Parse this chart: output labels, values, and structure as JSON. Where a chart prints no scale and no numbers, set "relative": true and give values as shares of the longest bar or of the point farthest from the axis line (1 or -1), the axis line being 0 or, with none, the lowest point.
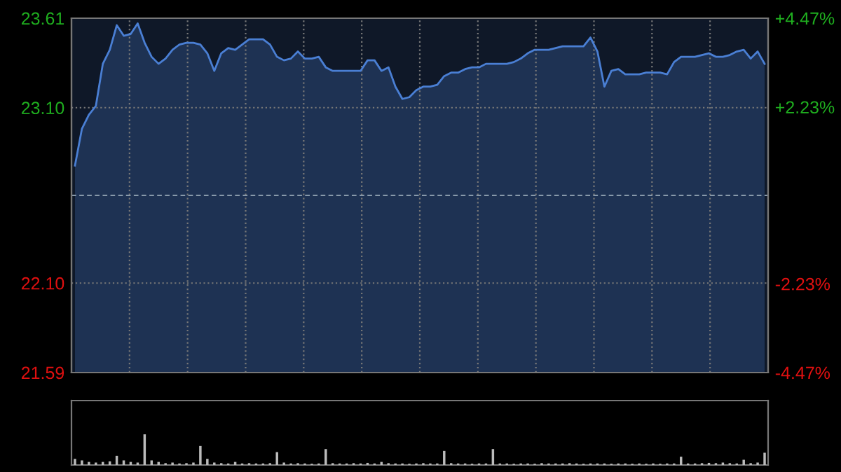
{
  "chart_data": [
    {
      "type": "area",
      "categories": [
        null,
        null,
        null,
        null,
        null,
        null,
        null,
        null,
        null,
        null,
        null,
        null,
        null,
        null,
        null,
        null,
        null,
        null,
        null,
        null,
        null,
        null,
        null,
        null,
        null,
        null,
        null,
        null,
        null,
        null,
        null,
        null,
        null,
        null,
        null,
        null,
        null,
        null,
        null,
        null,
        null,
        null,
        null,
        null,
        null,
        null,
        null,
        null,
        null,
        null,
        null,
        null,
        null,
        null,
        null,
        null,
        null,
        null,
        null,
        null,
        null,
        null,
        null,
        null,
        null,
        null,
        null,
        null,
        null,
        null,
        null,
        null,
        null,
        null,
        null,
        null,
        null,
        null,
        null,
        null,
        null,
        null,
        null,
        null,
        null,
        null,
        null,
        null,
        null,
        null,
        null,
        null,
        null,
        null,
        null,
        null,
        null,
        null,
        null,
        null
      ],
      "series": [
        {
          "color": "#4a7fd4",
          "values": [
            22.77,
            22.98,
            23.06,
            23.11,
            23.35,
            23.43,
            23.57,
            23.51,
            23.52,
            23.58,
            23.47,
            23.39,
            23.35,
            23.38,
            23.43,
            23.46,
            23.47,
            23.47,
            23.46,
            23.41,
            23.31,
            23.41,
            23.44,
            23.43,
            23.46,
            23.49,
            23.49,
            23.49,
            23.46,
            23.39,
            23.37,
            23.38,
            23.42,
            23.38,
            23.38,
            23.39,
            23.33,
            23.31,
            23.31,
            23.31,
            23.31,
            23.31,
            23.37,
            23.37,
            23.31,
            23.33,
            23.22,
            23.15,
            23.16,
            23.2,
            23.22,
            23.22,
            23.23,
            23.28,
            23.3,
            23.3,
            23.32,
            23.33,
            23.33,
            23.35,
            23.35,
            23.35,
            23.35,
            23.36,
            23.38,
            23.41,
            23.43,
            23.43,
            23.43,
            23.44,
            23.45,
            23.45,
            23.45,
            23.45,
            23.5,
            23.42,
            23.22,
            23.31,
            23.32,
            23.29,
            23.29,
            23.29,
            23.3,
            23.3,
            23.3,
            23.29,
            23.36,
            23.39,
            23.39,
            23.39,
            23.4,
            23.41,
            23.39,
            23.39,
            23.4,
            23.42,
            23.43,
            23.38,
            23.42,
            23.35
          ]
        }
      ],
      "ylim": [
        21.59,
        23.61
      ],
      "yticks": [
        23.61,
        {
          "value": 23.1,
          "label": "23.10"
        },
        {
          "value": 22.1,
          "label": "22.10"
        },
        21.59
      ],
      "y2lim": [
        -4.47,
        4.47
      ],
      "y2ticks": [
        {
          "value": 4.47,
          "label": "+4.47%"
        },
        {
          "value": 2.23,
          "label": "+2.23%"
        },
        {
          "value": -2.23,
          "label": "-2.23%"
        },
        {
          "value": -4.47,
          "label": "-4.47%"
        }
      ],
      "ref_lines": [
        {
          "axis": "y",
          "value": 22.6,
          "line_style": "dashed"
        }
      ],
      "grid": true
    },
    {
      "type": "bar",
      "relative": true,
      "categories": [
        null,
        null,
        null,
        null,
        null,
        null,
        null,
        null,
        null,
        null,
        null,
        null,
        null,
        null,
        null,
        null,
        null,
        null,
        null,
        null,
        null,
        null,
        null,
        null,
        null,
        null,
        null,
        null,
        null,
        null,
        null,
        null,
        null,
        null,
        null,
        null,
        null,
        null,
        null,
        null,
        null,
        null,
        null,
        null,
        null,
        null,
        null,
        null,
        null,
        null,
        null,
        null,
        null,
        null,
        null,
        null,
        null,
        null,
        null,
        null,
        null,
        null,
        null,
        null,
        null,
        null,
        null,
        null,
        null,
        null,
        null,
        null,
        null,
        null,
        null,
        null,
        null,
        null,
        null,
        null,
        null,
        null,
        null,
        null,
        null,
        null,
        null,
        null,
        null,
        null,
        null,
        null,
        null,
        null,
        null,
        null,
        null,
        null,
        null,
        null
      ],
      "values": [
        0.2,
        0.15,
        0.1,
        0.08,
        0.1,
        0.12,
        0.3,
        0.15,
        0.1,
        0.08,
        1.0,
        0.15,
        0.1,
        0.06,
        0.08,
        0.05,
        0.06,
        0.08,
        0.62,
        0.2,
        0.08,
        0.06,
        0.05,
        0.1,
        0.05,
        0.06,
        0.05,
        0.05,
        0.06,
        0.42,
        0.08,
        0.05,
        0.06,
        0.05,
        0.04,
        0.05,
        0.52,
        0.06,
        0.05,
        0.05,
        0.06,
        0.05,
        0.07,
        0.05,
        0.1,
        0.06,
        0.05,
        0.05,
        0.04,
        0.05,
        0.06,
        0.05,
        0.05,
        0.46,
        0.06,
        0.05,
        0.05,
        0.04,
        0.05,
        0.05,
        0.52,
        0.05,
        0.05,
        0.04,
        0.05,
        0.05,
        0.04,
        0.06,
        0.05,
        0.05,
        0.05,
        0.06,
        0.05,
        0.04,
        0.05,
        0.05,
        0.05,
        0.04,
        0.05,
        0.05,
        0.04,
        0.05,
        0.04,
        0.05,
        0.04,
        0.05,
        0.05,
        0.27,
        0.05,
        0.05,
        0.06,
        0.07,
        0.06,
        0.08,
        0.06,
        0.05,
        0.17,
        0.06,
        0.08,
        0.4
      ],
      "color": "#bbbbbb"
    }
  ]
}
